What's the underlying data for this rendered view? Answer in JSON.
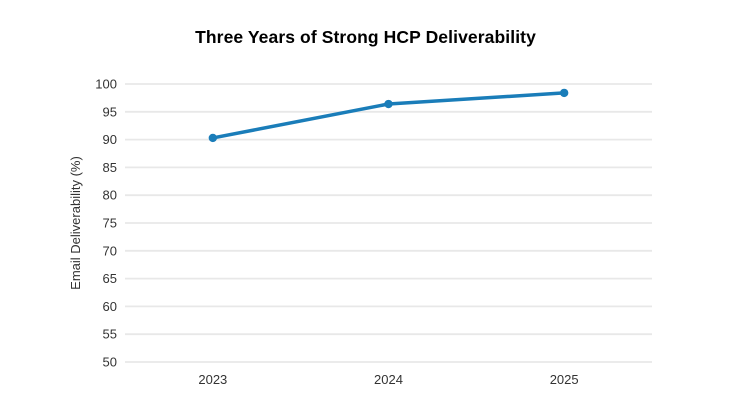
{
  "page": {
    "background_color": "#ffffff"
  },
  "chart_data": {
    "type": "line",
    "title": "Three Years of Strong HCP Deliverability",
    "categories": [
      "2023",
      "2024",
      "2025"
    ],
    "series": [
      {
        "name": "Email Deliverability",
        "values": [
          90.3,
          96.4,
          98.4
        ],
        "color": "#1a7db9"
      }
    ],
    "xlabel": "",
    "ylabel": "Email Deliverability (%)",
    "ylim": [
      50,
      100
    ],
    "ytick_step": 5,
    "yticks": [
      50,
      55,
      60,
      65,
      70,
      75,
      80,
      85,
      90,
      95,
      100
    ],
    "grid": true,
    "legend": false,
    "marker": "circle",
    "colors": {
      "line": "#1a7db9",
      "marker": "#1a7db9",
      "gridline": "#e8e8e8",
      "tick_text": "#333333",
      "axis_title_text": "#333333",
      "title_text": "#000000"
    }
  }
}
